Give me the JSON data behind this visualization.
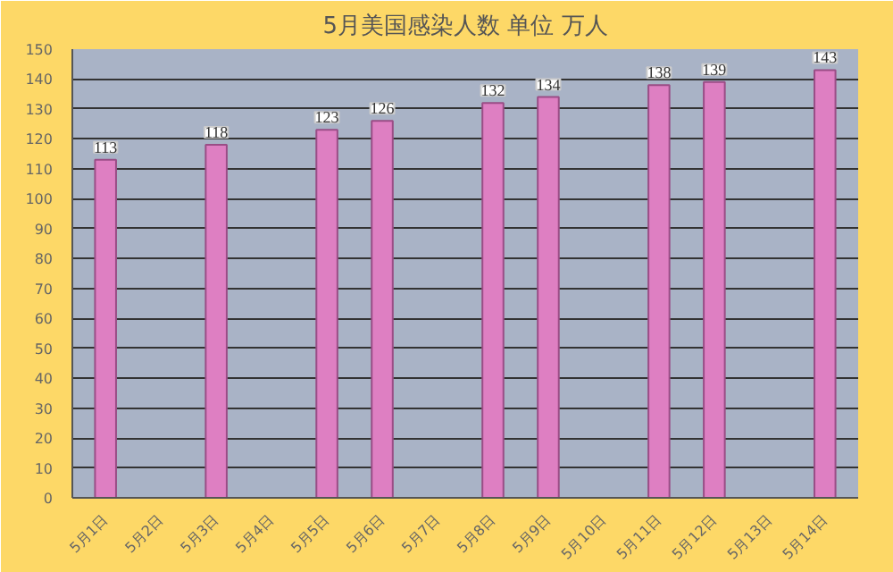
{
  "chart_data": {
    "type": "bar",
    "title": "5月美国感染人数 单位 万人",
    "categories": [
      "5月1日",
      "5月2日",
      "5月3日",
      "5月4日",
      "5月5日",
      "5月6日",
      "5月7日",
      "5月8日",
      "5月9日",
      "5月10日",
      "5月11日",
      "5月12日",
      "5月13日",
      "5月14日"
    ],
    "values": [
      113,
      null,
      118,
      null,
      123,
      126,
      null,
      132,
      134,
      null,
      138,
      139,
      null,
      143
    ],
    "color": "#de7fc2",
    "ylim": [
      0,
      150
    ],
    "yticks": [
      0,
      10,
      20,
      30,
      40,
      50,
      60,
      70,
      80,
      90,
      100,
      110,
      120,
      130,
      140,
      150
    ],
    "grid": "y",
    "data_labels": true
  }
}
